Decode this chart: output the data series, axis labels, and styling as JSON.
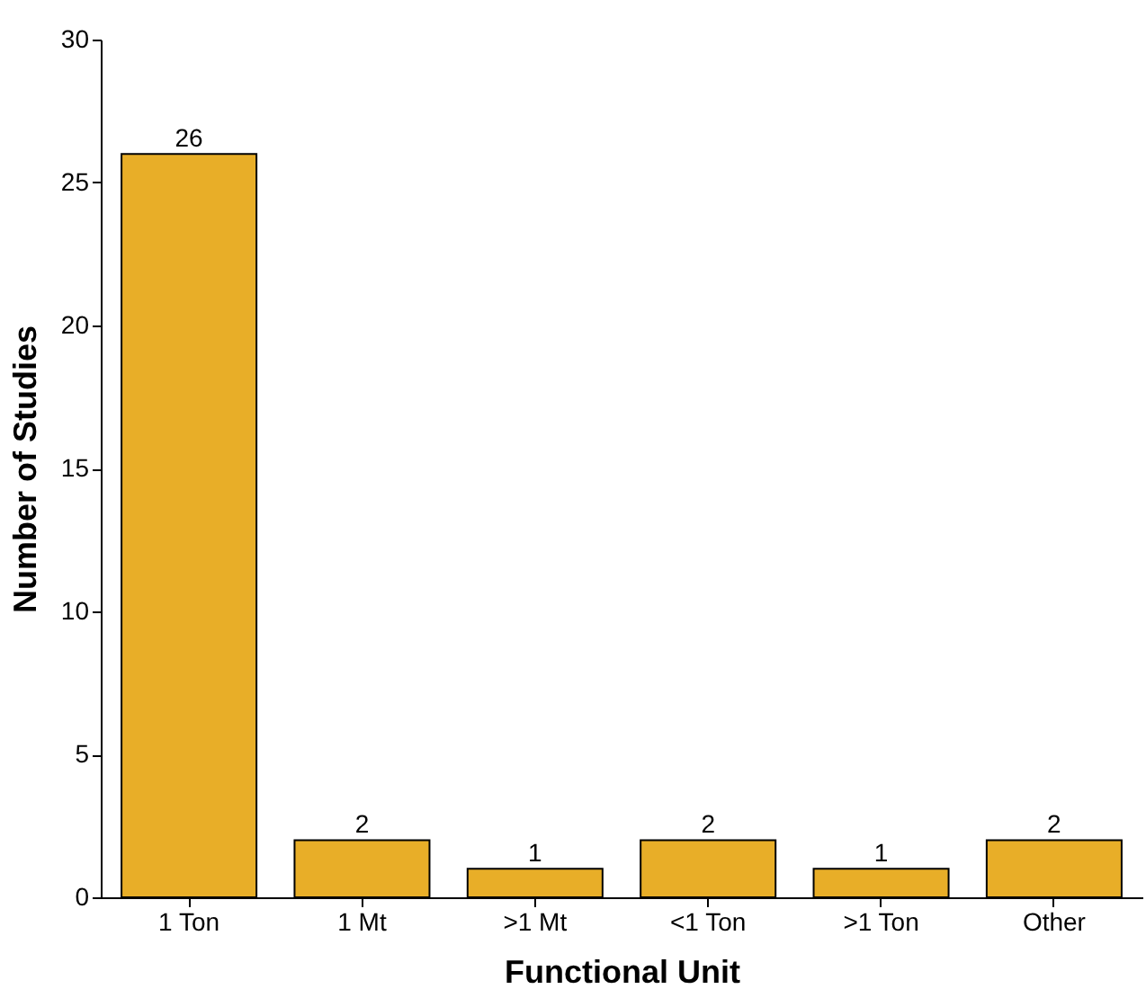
{
  "chart_data": {
    "type": "bar",
    "xlabel": "Functional Unit",
    "ylabel": "Number of Studies",
    "categories": [
      "1 Ton",
      "1 Mt",
      ">1 Mt",
      "<1 Ton",
      ">1 Ton",
      "Other"
    ],
    "values": [
      26,
      2,
      1,
      2,
      1,
      2
    ],
    "color": "#e8ae28",
    "ylim": [
      0,
      30
    ],
    "yticks": [
      0,
      5,
      10,
      15,
      20,
      25,
      30
    ],
    "grid": false,
    "data_labels": true
  }
}
